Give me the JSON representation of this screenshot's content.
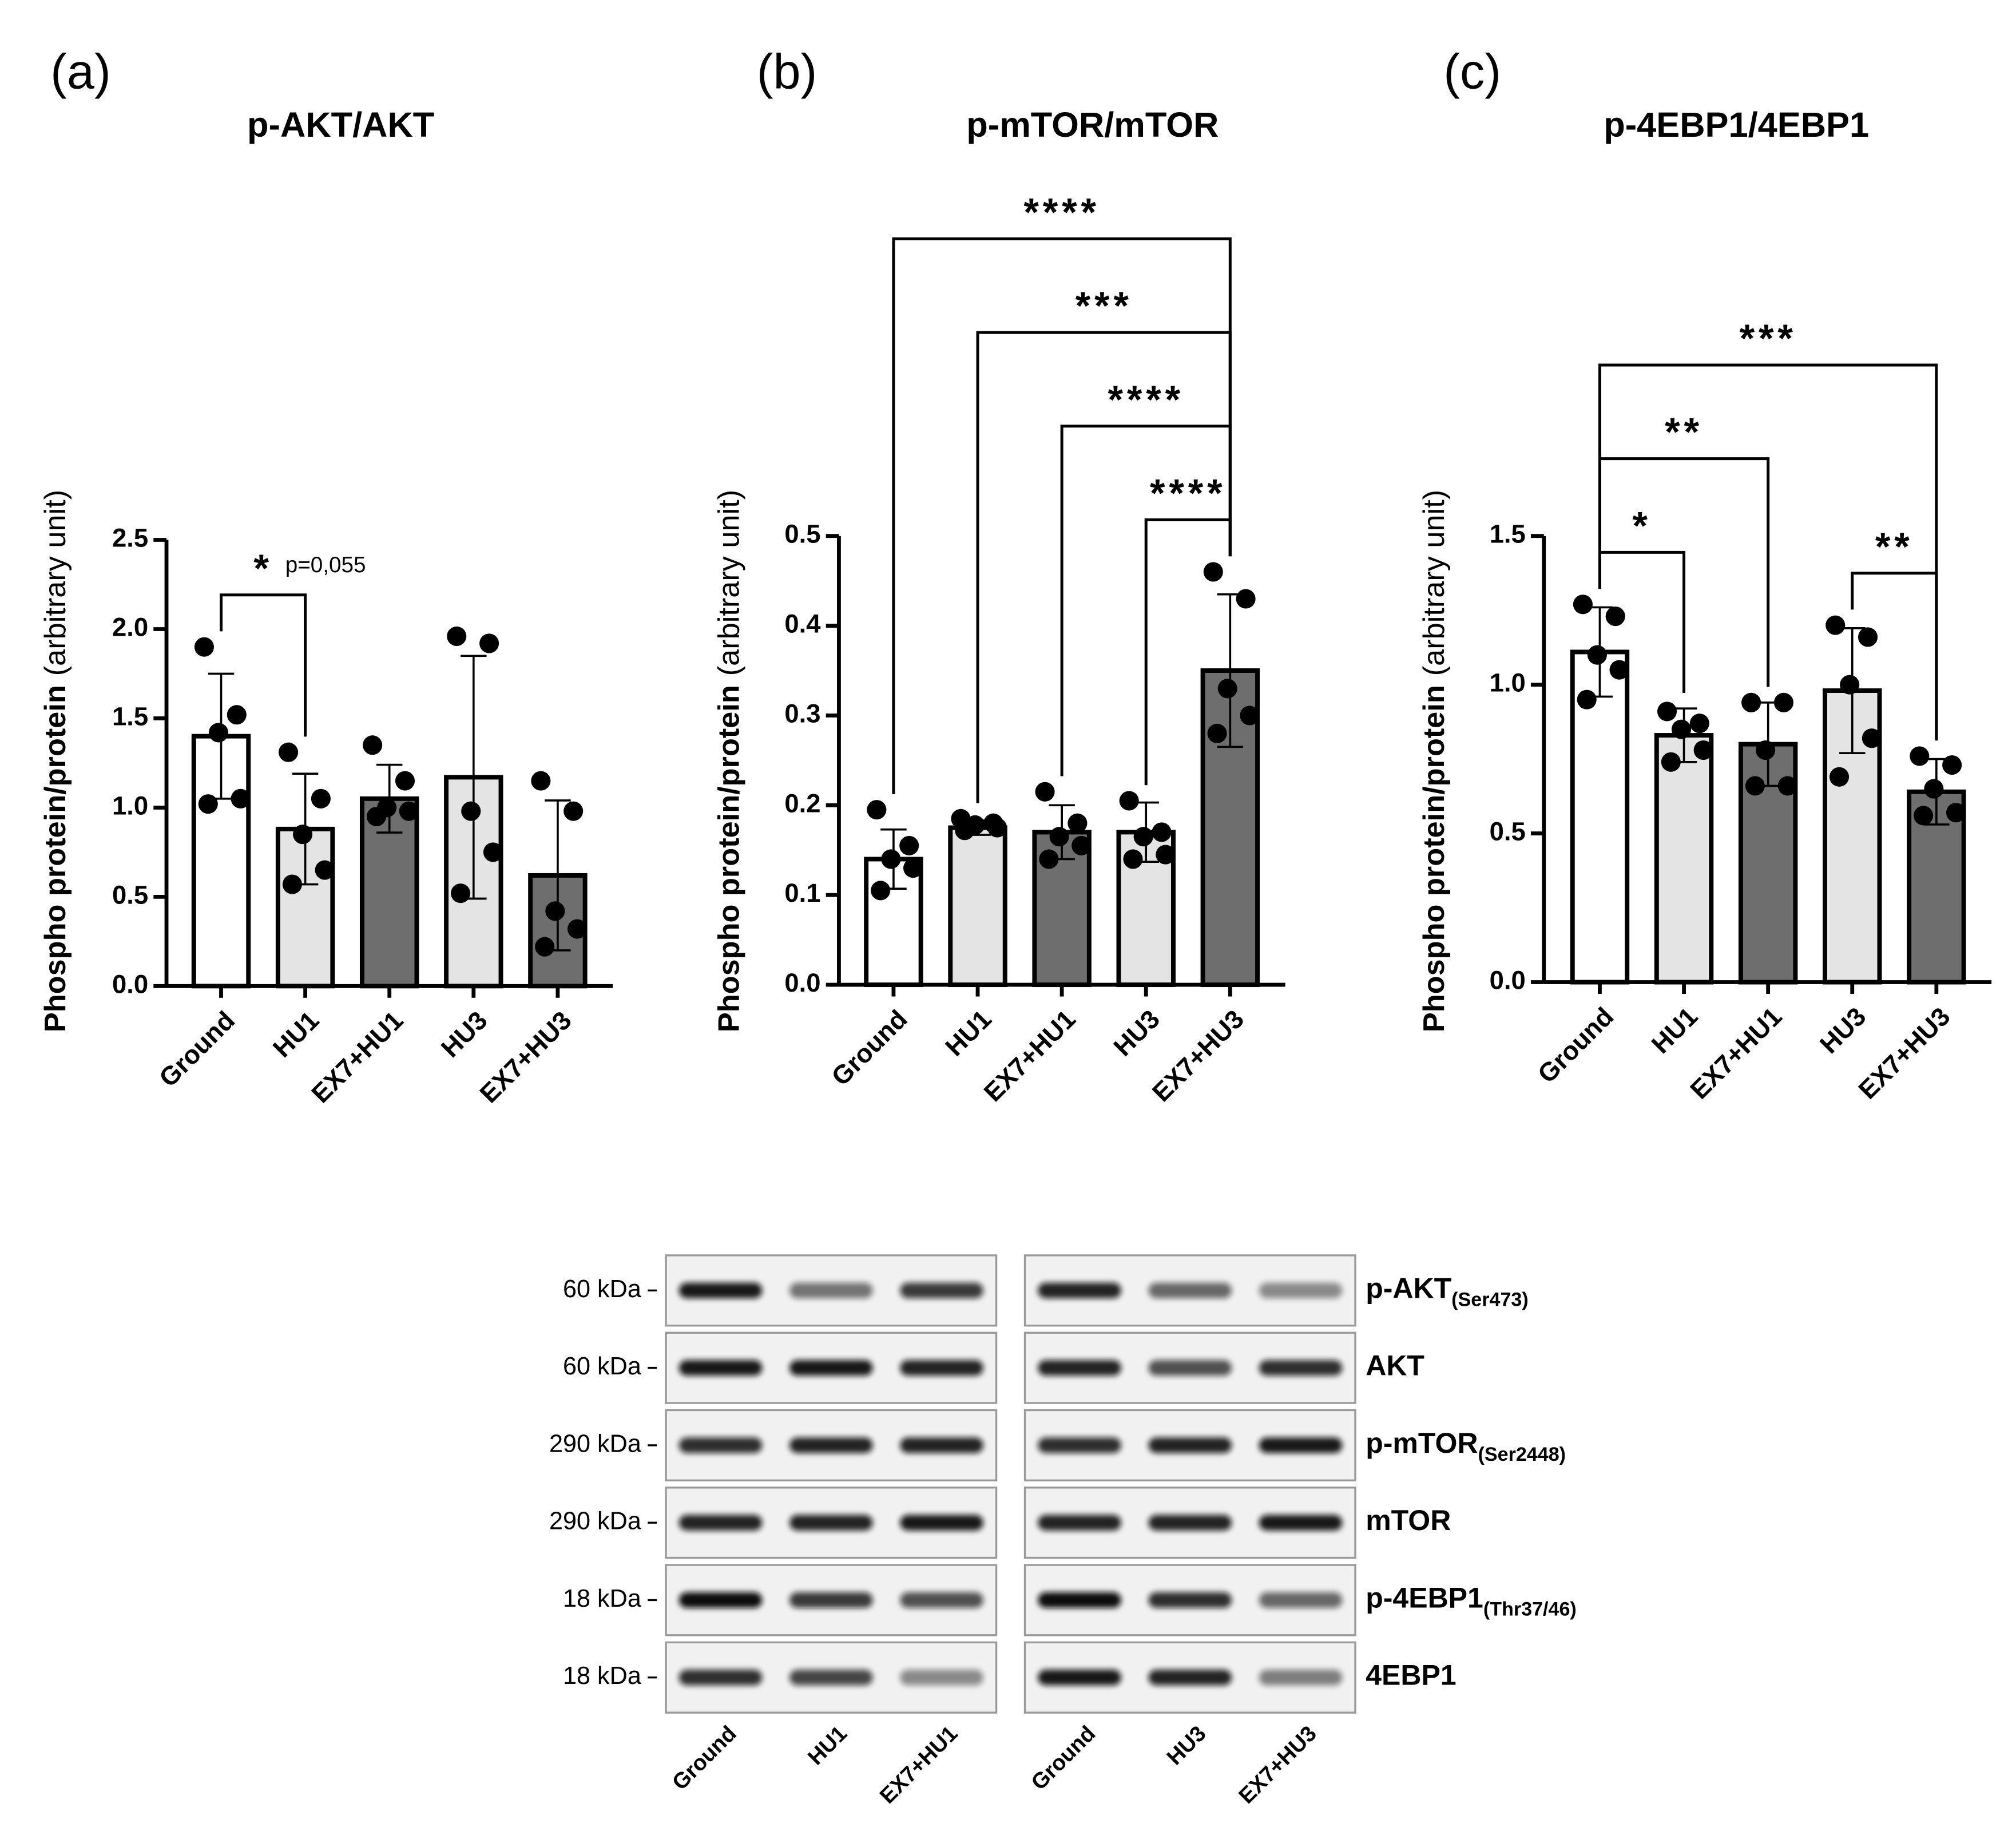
{
  "chart_data": [
    {
      "type": "bar",
      "panel": "(a)",
      "title": "p-AKT/AKT",
      "ylabel": [
        "Phospho protein/protein",
        "(arbitrary unit)"
      ],
      "categories": [
        "Ground",
        "HU1",
        "EX7+HU1",
        "HU3",
        "EX7+HU3"
      ],
      "values": [
        1.4,
        0.88,
        1.05,
        1.17,
        0.62
      ],
      "errors": [
        0.35,
        0.31,
        0.19,
        0.68,
        0.42
      ],
      "points": [
        [
          1.9,
          1.52,
          1.42,
          1.05,
          1.02
        ],
        [
          1.31,
          1.05,
          0.85,
          0.65,
          0.57
        ],
        [
          1.35,
          1.15,
          1.0,
          0.98,
          0.95
        ],
        [
          1.96,
          1.92,
          0.98,
          0.75,
          0.52
        ],
        [
          1.15,
          0.98,
          0.42,
          0.32,
          0.22
        ]
      ],
      "colors": [
        "#ffffff",
        "#e4e4e4",
        "#6e6e6e",
        "#e4e4e4",
        "#6e6e6e"
      ],
      "ylim": [
        0,
        2.5
      ],
      "yticks": [
        {
          "value": 0,
          "label": "0.0"
        },
        0.5,
        {
          "value": 1,
          "label": "1.0"
        },
        1.5,
        {
          "value": 2,
          "label": "2.0"
        },
        2.5
      ],
      "comparisons": [
        {
          "pair": [
            0,
            1
          ],
          "label": "*",
          "note": "p=0,055"
        }
      ]
    },
    {
      "type": "bar",
      "panel": "(b)",
      "title": "p-mTOR/mTOR",
      "ylabel": [
        "Phospho protein/protein",
        "(arbitrary unit)"
      ],
      "categories": [
        "Ground",
        "HU1",
        "EX7+HU1",
        "HU3",
        "EX7+HU3"
      ],
      "values": [
        0.14,
        0.175,
        0.17,
        0.17,
        0.35
      ],
      "errors": [
        0.033,
        0.008,
        0.03,
        0.033,
        0.085
      ],
      "points": [
        [
          0.195,
          0.155,
          0.14,
          0.13,
          0.105
        ],
        [
          0.185,
          0.18,
          0.178,
          0.175,
          0.172
        ],
        [
          0.215,
          0.18,
          0.165,
          0.155,
          0.14
        ],
        [
          0.205,
          0.17,
          0.165,
          0.145,
          0.14
        ],
        [
          0.46,
          0.43,
          0.33,
          0.3,
          0.28
        ]
      ],
      "colors": [
        "#ffffff",
        "#e4e4e4",
        "#6e6e6e",
        "#e4e4e4",
        "#6e6e6e"
      ],
      "ylim": [
        0,
        0.5
      ],
      "yticks": [
        {
          "value": 0,
          "label": "0.0"
        },
        0.1,
        0.2,
        0.3,
        0.4,
        0.5
      ],
      "comparisons": [
        {
          "pair": [
            0,
            4
          ],
          "label": "****"
        },
        {
          "pair": [
            1,
            4
          ],
          "label": "***"
        },
        {
          "pair": [
            2,
            4
          ],
          "label": "****"
        },
        {
          "pair": [
            3,
            4
          ],
          "label": "****"
        }
      ]
    },
    {
      "type": "bar",
      "panel": "(c)",
      "title": "p-4EBP1/4EBP1",
      "ylabel": [
        "Phospho protein/protein",
        "(arbitrary unit)"
      ],
      "categories": [
        "Ground",
        "HU1",
        "EX7+HU1",
        "HU3",
        "EX7+HU3"
      ],
      "values": [
        1.11,
        0.83,
        0.8,
        0.98,
        0.64
      ],
      "errors": [
        0.15,
        0.09,
        0.14,
        0.21,
        0.11
      ],
      "points": [
        [
          1.27,
          1.23,
          1.1,
          1.05,
          0.95
        ],
        [
          0.91,
          0.87,
          0.85,
          0.78,
          0.74
        ],
        [
          0.94,
          0.94,
          0.78,
          0.66,
          0.66
        ],
        [
          1.2,
          1.16,
          1.0,
          0.82,
          0.69
        ],
        [
          0.76,
          0.73,
          0.65,
          0.57,
          0.56
        ]
      ],
      "colors": [
        "#ffffff",
        "#e4e4e4",
        "#6e6e6e",
        "#e4e4e4",
        "#6e6e6e"
      ],
      "ylim": [
        0,
        1.5
      ],
      "yticks": [
        {
          "value": 0,
          "label": "0.0"
        },
        0.5,
        {
          "value": 1,
          "label": "1.0"
        },
        1.5
      ],
      "comparisons": [
        {
          "pair": [
            0,
            4
          ],
          "label": "***"
        },
        {
          "pair": [
            0,
            2
          ],
          "label": "**"
        },
        {
          "pair": [
            0,
            1
          ],
          "label": "*"
        },
        {
          "pair": [
            3,
            4
          ],
          "label": "**"
        }
      ]
    }
  ],
  "blot": {
    "markers": [
      "60 kDa",
      "60 kDa",
      "290 kDa",
      "290 kDa",
      "18 kDa",
      "18 kDa"
    ],
    "proteins": [
      {
        "name": "p-AKT",
        "sub": "(Ser473)"
      },
      {
        "name": "AKT"
      },
      {
        "name": "p-mTOR",
        "sub": "(Ser2448)"
      },
      {
        "name": "mTOR"
      },
      {
        "name": "p-4EBP1",
        "sub": "(Thr37/46)"
      },
      {
        "name": "4EBP1"
      }
    ],
    "lanes": [
      [
        "Ground",
        "HU1",
        "EX7+HU1"
      ],
      [
        "Ground",
        "HU3",
        "EX7+HU3"
      ]
    ]
  }
}
